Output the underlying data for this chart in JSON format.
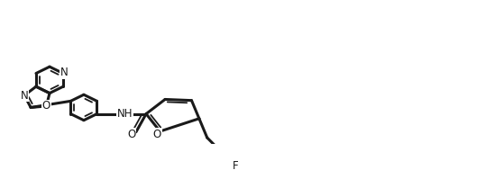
{
  "bg": "#ffffff",
  "lc": "#1a1a1a",
  "lw": 1.5,
  "lw2": 2.2,
  "fig_w": 5.59,
  "fig_h": 1.89,
  "dpi": 100,
  "atoms": {
    "N_label": "N",
    "O_label": "O",
    "F_label": "F",
    "NH_label": "NH"
  }
}
